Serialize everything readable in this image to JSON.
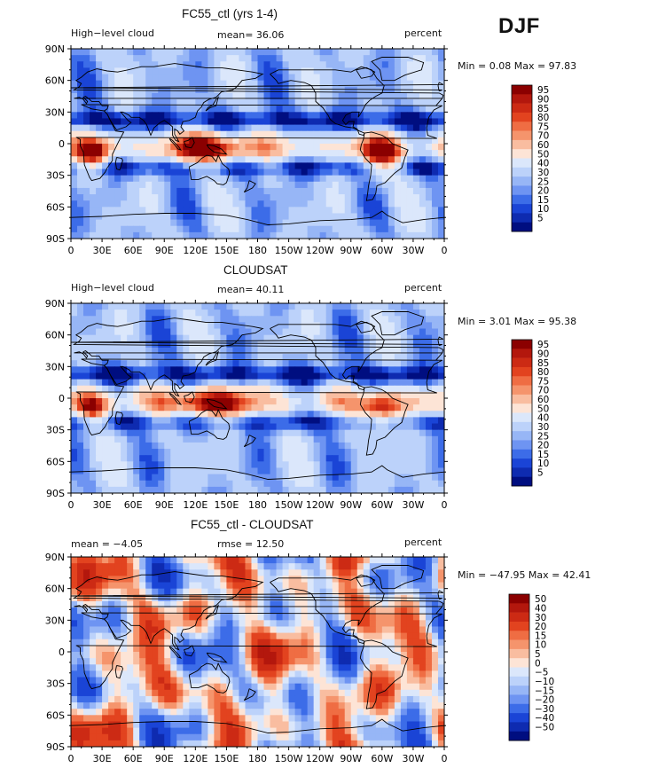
{
  "season": "DJF",
  "panels": [
    {
      "title": "FC55_ctl (yrs 1-4)",
      "left_label": "High−level cloud",
      "mid_label": "mean=  36.06",
      "right_label": "percent",
      "minmax": "Min =   0.08 Max =  97.83",
      "palette": "abs"
    },
    {
      "title": "CLOUDSAT",
      "left_label": "High−level cloud",
      "mid_label": "mean=  40.11",
      "right_label": "percent",
      "minmax": "Min =   3.01 Max =  95.38",
      "palette": "abs"
    },
    {
      "title": "FC55_ctl - CLOUDSAT",
      "left_label": "mean =  −4.05",
      "mid_label": "rmse =  12.50",
      "right_label": "percent",
      "minmax": "Min = −47.95 Max =  42.41",
      "palette": "diff"
    }
  ],
  "lat_ticks": [
    "90N",
    "60N",
    "30N",
    "0",
    "30S",
    "60S",
    "90S"
  ],
  "lon_ticks": [
    "0",
    "30E",
    "60E",
    "90E",
    "120E",
    "150E",
    "180",
    "150W",
    "120W",
    "90W",
    "60W",
    "30W",
    "0"
  ],
  "legends": {
    "abs": {
      "labels": [
        "95",
        "90",
        "85",
        "80",
        "75",
        "70",
        "60",
        "50",
        "40",
        "30",
        "25",
        "20",
        "15",
        "10",
        "5"
      ],
      "colors": [
        "#8b0000",
        "#b3170d",
        "#cc2a14",
        "#e2431f",
        "#ef6d43",
        "#f5946c",
        "#f9bda0",
        "#fde4d6",
        "#dbe7fb",
        "#bcd2fa",
        "#97b6f6",
        "#6e94f2",
        "#3c6ce8",
        "#1a44d6",
        "#0e2bb0",
        "#000e80"
      ]
    },
    "diff": {
      "labels": [
        "50",
        "40",
        "30",
        "20",
        "15",
        "10",
        "5",
        "0",
        "−5",
        "−10",
        "−15",
        "−20",
        "−30",
        "−40",
        "−50"
      ],
      "colors": [
        "#8b0000",
        "#b3170d",
        "#cc2a14",
        "#e2431f",
        "#ef6d43",
        "#f5946c",
        "#f9bda0",
        "#fde4d6",
        "#dbe7fb",
        "#bcd2fa",
        "#97b6f6",
        "#6e94f2",
        "#3c6ce8",
        "#1a44d6",
        "#0e2bb0",
        "#000e80"
      ]
    }
  }
}
